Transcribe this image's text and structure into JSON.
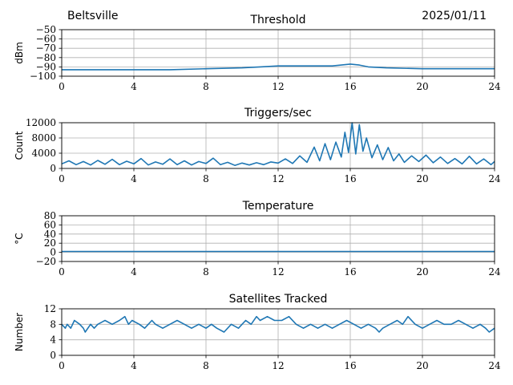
{
  "header": {
    "site": "Beltsville",
    "date": "2025/01/11"
  },
  "chart_data": [
    {
      "type": "line",
      "title": "Threshold",
      "ylabel": "dBm",
      "xlim": [
        0,
        24
      ],
      "ylim": [
        -100,
        -50
      ],
      "xticks": [
        0,
        4,
        8,
        12,
        16,
        20,
        24
      ],
      "yticks": [
        -100,
        -90,
        -80,
        -70,
        -60,
        -50
      ],
      "grid": true,
      "color": "#1f77b4",
      "series": [
        {
          "x": [
            0,
            2,
            4,
            6,
            8,
            10,
            11,
            12,
            13,
            14,
            15,
            15.5,
            16,
            16.5,
            17,
            18,
            20,
            22,
            24
          ],
          "y": [
            -93,
            -93,
            -93,
            -93,
            -92,
            -91,
            -90,
            -89,
            -89,
            -89,
            -89,
            -88,
            -87,
            -88,
            -90,
            -91,
            -92,
            -92,
            -92
          ]
        }
      ]
    },
    {
      "type": "line",
      "title": "Triggers/sec",
      "ylabel": "Count",
      "xlim": [
        0,
        24
      ],
      "ylim": [
        0,
        12000
      ],
      "xticks": [
        0,
        4,
        8,
        12,
        16,
        20,
        24
      ],
      "yticks": [
        0,
        4000,
        8000,
        12000
      ],
      "grid": true,
      "color": "#1f77b4",
      "series": [
        {
          "x": [
            0,
            0.4,
            0.8,
            1.2,
            1.6,
            2,
            2.4,
            2.8,
            3.2,
            3.6,
            4,
            4.4,
            4.8,
            5.2,
            5.6,
            6,
            6.4,
            6.8,
            7.2,
            7.6,
            8,
            8.4,
            8.8,
            9.2,
            9.6,
            10,
            10.4,
            10.8,
            11.2,
            11.6,
            12,
            12.4,
            12.8,
            13.2,
            13.6,
            14,
            14.3,
            14.6,
            14.9,
            15.2,
            15.5,
            15.7,
            15.9,
            16.1,
            16.3,
            16.5,
            16.7,
            16.9,
            17.2,
            17.5,
            17.8,
            18.1,
            18.4,
            18.7,
            19,
            19.4,
            19.8,
            20.2,
            20.6,
            21,
            21.4,
            21.8,
            22.2,
            22.6,
            23,
            23.4,
            23.8,
            24
          ],
          "y": [
            1200,
            2000,
            1000,
            1800,
            900,
            2100,
            1100,
            2400,
            1000,
            1900,
            1200,
            2600,
            900,
            1700,
            1100,
            2500,
            1000,
            2000,
            900,
            1800,
            1300,
            2700,
            1000,
            1600,
            800,
            1400,
            900,
            1500,
            1000,
            1700,
            1400,
            2500,
            1300,
            3300,
            1600,
            5600,
            2000,
            6500,
            2300,
            6900,
            3000,
            9500,
            4200,
            12000,
            3800,
            11500,
            4500,
            8000,
            2800,
            6200,
            2300,
            5500,
            2000,
            3800,
            1600,
            3300,
            1800,
            3500,
            1500,
            3000,
            1300,
            2600,
            1200,
            3200,
            1200,
            2500,
            1000,
            1800
          ]
        }
      ]
    },
    {
      "type": "line",
      "title": "Temperature",
      "ylabel": "°C",
      "xlim": [
        0,
        24
      ],
      "ylim": [
        -20,
        80
      ],
      "xticks": [
        0,
        4,
        8,
        12,
        16,
        20,
        24
      ],
      "yticks": [
        -20,
        0,
        20,
        40,
        60,
        80
      ],
      "grid": true,
      "color": "#1f77b4",
      "series": [
        {
          "x": [
            0,
            24
          ],
          "y": [
            2,
            2
          ]
        }
      ]
    },
    {
      "type": "line",
      "title": "Satellites Tracked",
      "ylabel": "Number",
      "xlim": [
        0,
        24
      ],
      "ylim": [
        0,
        12
      ],
      "xticks": [
        0,
        4,
        8,
        12,
        16,
        20,
        24
      ],
      "yticks": [
        0,
        4,
        8,
        12
      ],
      "grid": true,
      "color": "#1f77b4",
      "series": [
        {
          "x": [
            0,
            0.2,
            0.3,
            0.5,
            0.7,
            1.0,
            1.2,
            1.3,
            1.6,
            1.8,
            2.0,
            2.4,
            2.8,
            3.2,
            3.5,
            3.7,
            3.9,
            4.3,
            4.6,
            4.8,
            5.0,
            5.2,
            5.6,
            6.0,
            6.4,
            6.8,
            7.2,
            7.6,
            8.0,
            8.3,
            8.6,
            9.0,
            9.4,
            9.8,
            10.0,
            10.2,
            10.5,
            10.8,
            11.0,
            11.4,
            11.8,
            12.2,
            12.6,
            13.0,
            13.4,
            13.8,
            14.2,
            14.6,
            15.0,
            15.4,
            15.8,
            16.2,
            16.6,
            17.0,
            17.4,
            17.6,
            17.8,
            18.2,
            18.6,
            18.9,
            19.2,
            19.6,
            20.0,
            20.4,
            20.8,
            21.2,
            21.6,
            22.0,
            22.4,
            22.8,
            23.2,
            23.5,
            23.7,
            24.0
          ],
          "y": [
            8,
            7,
            8,
            7,
            9,
            8,
            7,
            6,
            8,
            7,
            8,
            9,
            8,
            9,
            10,
            8,
            9,
            8,
            7,
            8,
            9,
            8,
            7,
            8,
            9,
            8,
            7,
            8,
            7,
            8,
            7,
            6,
            8,
            7,
            8,
            9,
            8,
            10,
            9,
            10,
            9,
            9,
            10,
            8,
            7,
            8,
            7,
            8,
            7,
            8,
            9,
            8,
            7,
            8,
            7,
            6,
            7,
            8,
            9,
            8,
            10,
            8,
            7,
            8,
            9,
            8,
            8,
            9,
            8,
            7,
            8,
            7,
            6,
            7
          ]
        }
      ]
    }
  ]
}
